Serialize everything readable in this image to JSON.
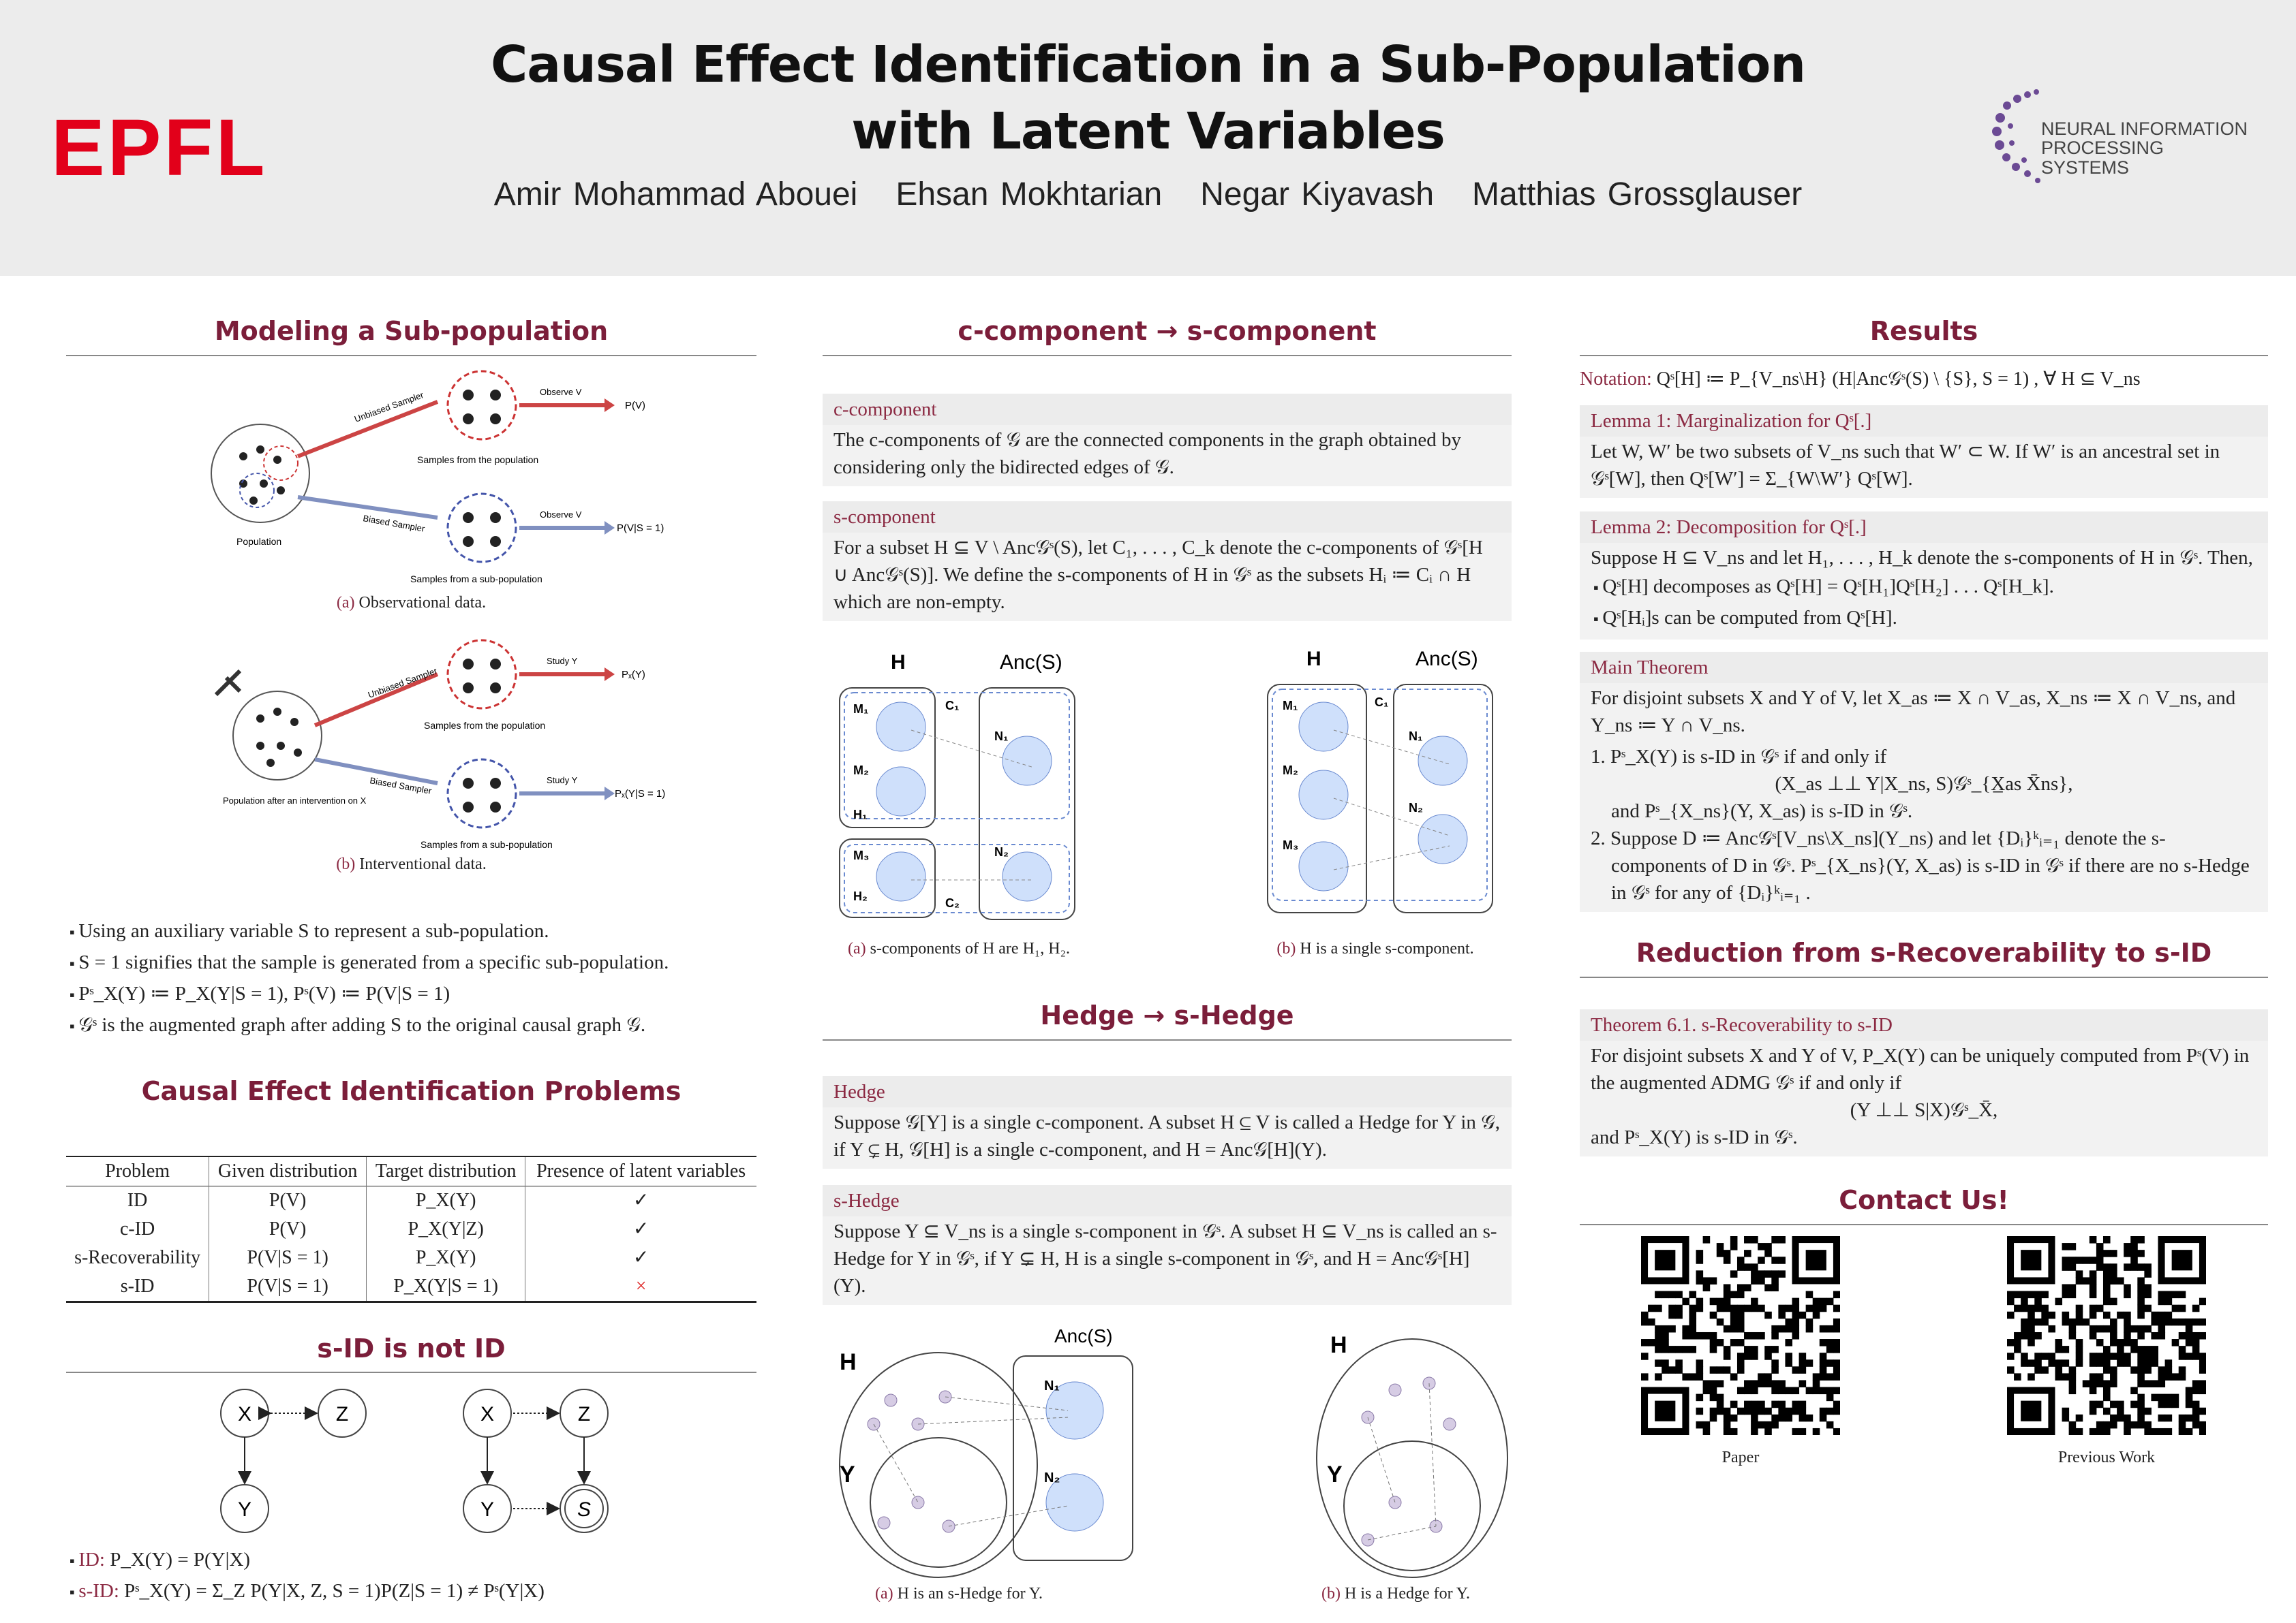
{
  "header": {
    "title_line1": "Causal Effect Identification in a Sub-Population",
    "title_line2": "with Latent Variables",
    "authors": [
      "Amir Mohammad Abouei",
      "Ehsan Mokhtarian",
      "Negar Kiyavash",
      "Matthias Grossglauser"
    ],
    "logo_left": "EPFL",
    "logo_right_line1": "NEURAL INFORMATION",
    "logo_right_line2": "PROCESSING SYSTEMS"
  },
  "colors": {
    "accent": "#7b1e3a",
    "epfl_red": "#e2001a",
    "box_bg": "#f2f2f2"
  },
  "modeling": {
    "heading": "Modeling a Sub-population",
    "fig_a": {
      "unbiased": "Unbiased Sampler",
      "biased": "Biased Sampler",
      "observe1": "Observe V",
      "observe2": "Observe V",
      "out1": "P(V)",
      "out2": "P(V|S = 1)",
      "samples_pop": "Samples from the population",
      "samples_sub": "Samples from a sub-population",
      "population": "Population",
      "caption_label": "(a)",
      "caption": "Observational data."
    },
    "fig_b": {
      "unbiased": "Unbiased Sampler",
      "biased": "Biased Sampler",
      "study1": "Study Y",
      "study2": "Study Y",
      "out1": "Pₓ(Y)",
      "out2": "Pₓ(Y|S = 1)",
      "samples_pop": "Samples from the population",
      "samples_sub": "Samples from a sub-population",
      "population": "Population after an intervention on X",
      "caption_label": "(b)",
      "caption": "Interventional data."
    },
    "bullets": [
      "Using an auxiliary variable S to represent a sub-population.",
      "S = 1 signifies that the sample is generated from a specific sub-population.",
      "Pˢ_X(Y) ≔ P_X(Y|S = 1), Pˢ(V) ≔ P(V|S = 1)",
      "𝒢ˢ is the augmented graph after adding S to the original causal graph 𝒢."
    ]
  },
  "problems": {
    "heading": "Causal Effect Identification Problems",
    "columns": [
      "Problem",
      "Given distribution",
      "Target distribution",
      "Presence of latent variables"
    ],
    "rows": [
      [
        "ID",
        "P(V)",
        "P_X(Y)",
        "✓"
      ],
      [
        "c-ID",
        "P(V)",
        "P_X(Y|Z)",
        "✓"
      ],
      [
        "s-Recoverability",
        "P(V|S = 1)",
        "P_X(Y)",
        "✓"
      ],
      [
        "s-ID",
        "P(V|S = 1)",
        "P_X(Y|S = 1)",
        "×"
      ]
    ]
  },
  "sid": {
    "heading": "s-ID is not ID",
    "nodes": {
      "x": "X",
      "z": "Z",
      "y": "Y",
      "s": "S"
    },
    "bullets": [
      {
        "label": "ID:",
        "text": " P_X(Y) = P(Y|X)"
      },
      {
        "label": "s-ID:",
        "text": " Pˢ_X(Y) = Σ_Z P(Y|X, Z, S = 1)P(Z|S = 1) ≠ Pˢ(Y|X)"
      }
    ]
  },
  "ccomp": {
    "heading": "c-component → s-component",
    "box1": {
      "title": "c-component",
      "body": "The c-components of 𝒢 are the connected components in the graph obtained by considering only the bidirected edges of 𝒢."
    },
    "box2": {
      "title": "s-component",
      "body": "For a subset H ⊆ V \\ Anc𝒢ˢ(S), let C₁, . . . , C_k denote the c-components of 𝒢ˢ[H ∪ Anc𝒢ˢ(S)]. We define the s-components of H in 𝒢ˢ as the subsets Hᵢ ≔ Cᵢ ∩ H which are non-empty."
    },
    "fig": {
      "h": "H",
      "anc": "Anc(S)",
      "m1": "M₁",
      "m2": "M₂",
      "m3": "M₃",
      "h1": "H₁",
      "h2": "H₂",
      "c1": "C₁",
      "c2": "C₂",
      "n1": "N₁",
      "n2": "N₂",
      "cap_a_label": "(a)",
      "cap_a": "s-components of H are H₁, H₂.",
      "cap_b_label": "(b)",
      "cap_b": "H is a single s-component."
    }
  },
  "hedge": {
    "heading": "Hedge → s-Hedge",
    "box1": {
      "title": "Hedge",
      "body": "Suppose 𝒢[Y] is a single c-component. A subset H ⊆ V is called a Hedge for Y in 𝒢, if Y ⊊ H, 𝒢[H] is a single c-component, and H = Anc𝒢[H](Y)."
    },
    "box2": {
      "title": "s-Hedge",
      "body": "Suppose Y ⊆ V_ns is a single s-component in 𝒢ˢ. A subset H ⊆ V_ns is called an s-Hedge for Y in 𝒢ˢ, if Y ⊊ H, H is a single s-component in 𝒢ˢ, and H = Anc𝒢ˢ[H](Y)."
    },
    "fig": {
      "h": "H",
      "y": "Y",
      "anc": "Anc(S)",
      "n1": "N₁",
      "n2": "N₂",
      "cap_a_label": "(a)",
      "cap_a": "H is an s-Hedge for Y.",
      "cap_b_label": "(b)",
      "cap_b": "H is a Hedge for Y."
    }
  },
  "results": {
    "heading": "Results",
    "notation_label": "Notation:",
    "notation": " Qˢ[H] ≔ P_{V_ns\\H} (H|Anc𝒢ˢ(S) \\ {S}, S = 1) , ∀ H ⊆ V_ns",
    "lemma1": {
      "title": "Lemma 1: Marginalization for Qˢ[.]",
      "body": "Let W, W′ be two subsets of V_ns such that W′ ⊂ W. If W′ is an ancestral set in 𝒢ˢ[W], then Qˢ[W′] = Σ_{W\\W′} Qˢ[W]."
    },
    "lemma2": {
      "title": "Lemma 2: Decomposition for Qˢ[.]",
      "body": "Suppose H ⊆ V_ns and let H₁, . . . , H_k denote the s-components of H in 𝒢ˢ. Then,",
      "items": [
        "Qˢ[H] decomposes as Qˢ[H] = Qˢ[H₁]Qˢ[H₂] . . . Qˢ[H_k].",
        "Qˢ[Hᵢ]s can be computed from Qˢ[H]."
      ]
    },
    "main": {
      "title": "Main Theorem",
      "body": "For disjoint subsets X and Y of V, let X_as ≔ X ∩ V_as, X_ns ≔ X ∩ V_ns, and Y_ns ≔ Y ∩ V_ns.",
      "item1": "1. Pˢ_X(Y) is s-ID in 𝒢ˢ if and only if",
      "formula": "(X_as ⊥⊥ Y|X_ns, S)𝒢ˢ_{X̲as X̄ns},",
      "item1b": "and Pˢ_{X_ns}(Y, X_as) is s-ID in 𝒢ˢ.",
      "item2": "2. Suppose D ≔ Anc𝒢ˢ[V_ns\\X_ns](Y_ns) and let {Dᵢ}ᵏᵢ₌₁ denote the s-components of D in 𝒢ˢ. Pˢ_{X_ns}(Y, X_as) is s-ID in 𝒢ˢ if there are no s-Hedge in 𝒢ˢ for any of {Dᵢ}ᵏᵢ₌₁ ."
    }
  },
  "reduction": {
    "heading": "Reduction from s-Recoverability to s-ID",
    "title": "Theorem 6.1. s-Recoverability to s-ID",
    "body": "For disjoint subsets X and Y of V, P_X(Y) can be uniquely computed from Pˢ(V) in the augmented ADMG 𝒢ˢ if and only if",
    "formula": "(Y ⊥⊥ S|X)𝒢ˢ_X̄,",
    "tail": "and Pˢ_X(Y) is s-ID in 𝒢ˢ."
  },
  "contact": {
    "heading": "Contact Us!",
    "qr": [
      {
        "label": "Paper"
      },
      {
        "label": "Previous Work"
      }
    ]
  }
}
